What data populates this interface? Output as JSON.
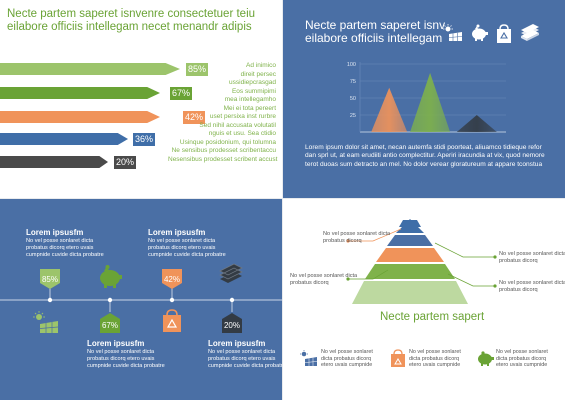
{
  "panel1": {
    "title": "Necte partem saperet isnvenre consectetuer teiu eilabore officiis intellegam necet menandr adipis",
    "ribbons": [
      {
        "pct": "85%",
        "value": 85,
        "color": "#9cc46b"
      },
      {
        "pct": "67%",
        "value": 67,
        "color": "#6aa335"
      },
      {
        "pct": "42%",
        "value": 42,
        "color": "#f0935a"
      },
      {
        "pct": "36%",
        "value": 36,
        "color": "#3f6ea8"
      },
      {
        "pct": "20%",
        "value": 20,
        "color": "#4a4a4a"
      }
    ],
    "list": [
      "Ad inimico",
      "direit persec",
      "ussidiepcrasgad",
      "Eos summipimi",
      "mea intellegamho",
      "Mei ei tota pereert",
      "uset persixa inst rurbre",
      "Sed nihil accusata volutatil",
      "nguis et usu. Sea ctidio",
      "Usinque posidonium, qui tolumna",
      "Ne sensibus prodesset scribentaccu",
      "Nesensibus prodesset scribent accust"
    ]
  },
  "panel2": {
    "title": "Necte partem saperet isnv eilabore officiis intellegam",
    "icons": [
      "solar-panel-icon",
      "piggy-bank-icon",
      "recycle-bag-icon",
      "money-stack-icon"
    ],
    "body": "Lorem ipsum dolor sit amet, necan autemfa stidi poorteat, aliuamco tidieque refor dan sprl ut, at eam erudiiti antio complectitur. Aperiri iracundia at vix, quod nemore terot duoas sum detracto an mel. No dolor verear gloratureum at appare tconstua"
  },
  "chart_data": {
    "type": "area",
    "title": "",
    "xlabel": "",
    "ylabel": "",
    "ylim": [
      0,
      100
    ],
    "yticks": [
      "100",
      "75",
      "50",
      "25"
    ],
    "series": [
      {
        "color": "#f0935a",
        "peak": 65
      },
      {
        "color": "#7fb24a",
        "peak": 87
      },
      {
        "color": "#333b44",
        "peak": 25
      }
    ]
  },
  "panel3": {
    "blocks": [
      {
        "head": "Lorem ipsusfm",
        "body": "No vel posse sonlaret dicta probatus dicorq etero uvais cumpnide cuvide dicta probatre"
      },
      {
        "head": "Lorem ipsusfm",
        "body": "No vel posse sonlaret dicta probatus dicorq etero uvais cumpnide cuvide dicta probatre"
      },
      {
        "head": "Lorem ipsusfm",
        "body": "No vel posse sonlaret dicta probatus dicorq etero uvais cumpnide cuvide dicta probatre"
      },
      {
        "head": "Lorem ipsusfm",
        "body": "No vel posse sonlaret dicta probatus dicorq etero uvais cumpnide cuvide dicta probatre"
      }
    ],
    "badges": [
      "85%",
      "67%",
      "42%",
      "20%"
    ]
  },
  "panel4": {
    "title": "Necte partem sapert",
    "labels": [
      "No vel posse sonlaret dicta probatus dicorq",
      "No vel posse sonlaret dicta probatus dicorq",
      "No vel posse sonlaret dicta probatus dicorq",
      "No vel posse sonlaret dicta probatus dicorq"
    ],
    "footer": [
      "No vel posse sonlaret dicta probatus dicorq etero uvais cumpnide",
      "No vel posse sonlaret dicta probatus dicorq etero uvais cumpnide",
      "No vel posse sonlaret dicta probatus dicorq etero uvais cumpnide"
    ]
  }
}
